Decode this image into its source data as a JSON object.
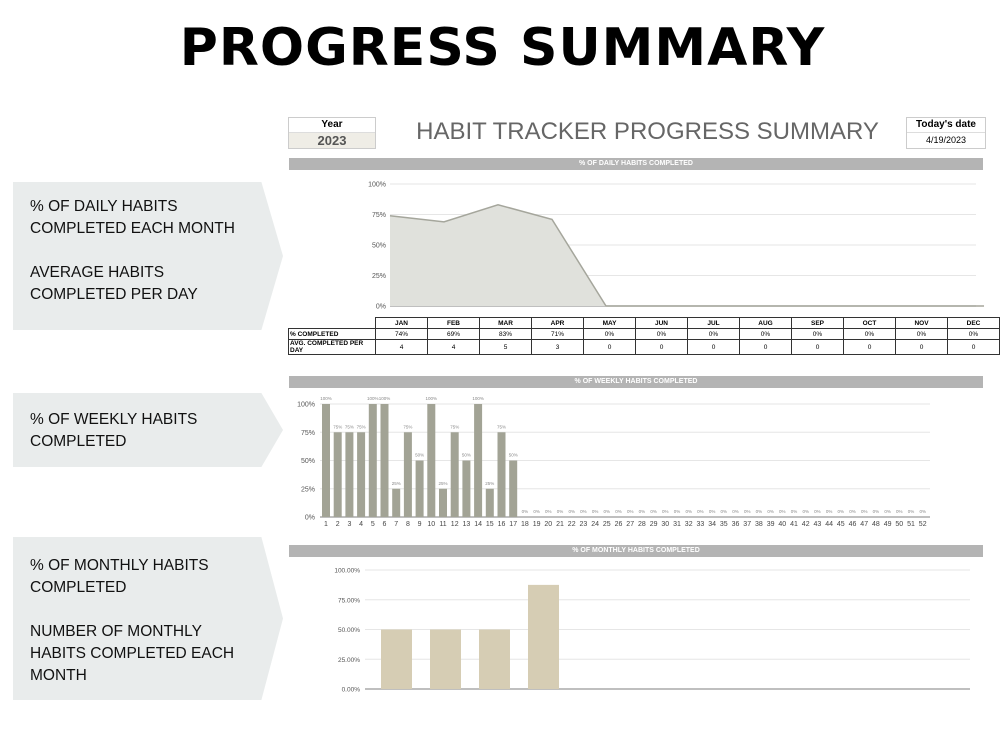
{
  "page_title": "PROGRESS SUMMARY",
  "panels": [
    {
      "text": "% OF DAILY HABITS\nCOMPLETED EACH MONTH\n\nAVERAGE HABITS\nCOMPLETED PER DAY"
    },
    {
      "text": "% OF WEEKLY HABITS\nCOMPLETED"
    },
    {
      "text": "% OF MONTHLY HABITS\nCOMPLETED\n\nNUMBER OF MONTHLY\nHABITS  COMPLETED EACH\nMONTH"
    }
  ],
  "header": {
    "year_label": "Year",
    "year_value": "2023",
    "sheet_title": "HABIT TRACKER PROGRESS SUMMARY",
    "date_label": "Today's date",
    "date_value": "4/19/2023"
  },
  "colors": {
    "area_fill": "#e0e1dc",
    "area_line": "#a5a69c",
    "weekly_bar": "#a2a395",
    "monthly_bar": "#d6cdb4",
    "section_header": "#b4b4b4",
    "panel_bg": "#e9ecec"
  },
  "table": {
    "row_labels": [
      "% COMPLETED",
      "AVG. COMPLETED PER DAY"
    ],
    "months": [
      "JAN",
      "FEB",
      "MAR",
      "APR",
      "MAY",
      "JUN",
      "JUL",
      "AUG",
      "SEP",
      "OCT",
      "NOV",
      "DEC"
    ],
    "pct": [
      "74%",
      "69%",
      "83%",
      "71%",
      "0%",
      "0%",
      "0%",
      "0%",
      "0%",
      "0%",
      "0%",
      "0%"
    ],
    "avg": [
      "4",
      "4",
      "5",
      "3",
      "0",
      "0",
      "0",
      "0",
      "0",
      "0",
      "0",
      "0"
    ]
  },
  "chart_data": [
    {
      "type": "area",
      "title": "% OF DAILY HABITS COMPLETED",
      "categories": [
        "JAN",
        "FEB",
        "MAR",
        "APR",
        "MAY",
        "JUN",
        "JUL",
        "AUG",
        "SEP",
        "OCT",
        "NOV",
        "DEC"
      ],
      "values": [
        74,
        69,
        83,
        71,
        0,
        0,
        0,
        0,
        0,
        0,
        0,
        0
      ],
      "ylim": [
        0,
        100
      ],
      "yticks": [
        "0%",
        "25%",
        "50%",
        "75%",
        "100%"
      ],
      "grid": true
    },
    {
      "type": "bar",
      "title": "% OF WEEKLY HABITS COMPLETED",
      "categories": [
        "1",
        "2",
        "3",
        "4",
        "5",
        "6",
        "7",
        "8",
        "9",
        "10",
        "11",
        "12",
        "13",
        "14",
        "15",
        "16",
        "17",
        "18",
        "19",
        "20",
        "21",
        "22",
        "23",
        "24",
        "25",
        "26",
        "27",
        "28",
        "29",
        "30",
        "31",
        "32",
        "33",
        "34",
        "35",
        "36",
        "37",
        "38",
        "39",
        "40",
        "41",
        "42",
        "43",
        "44",
        "45",
        "46",
        "47",
        "48",
        "49",
        "50",
        "51",
        "52"
      ],
      "values": [
        100,
        75,
        75,
        75,
        100,
        100,
        25,
        75,
        50,
        100,
        25,
        75,
        50,
        100,
        25,
        75,
        50,
        0,
        0,
        0,
        0,
        0,
        0,
        0,
        0,
        0,
        0,
        0,
        0,
        0,
        0,
        0,
        0,
        0,
        0,
        0,
        0,
        0,
        0,
        0,
        0,
        0,
        0,
        0,
        0,
        0,
        0,
        0,
        0,
        0,
        0,
        0
      ],
      "data_labels": true,
      "ylim": [
        0,
        100
      ],
      "yticks": [
        "0%",
        "25%",
        "50%",
        "75%",
        "100%"
      ],
      "grid": true
    },
    {
      "type": "bar",
      "title": "% OF MONTHLY HABITS COMPLETED",
      "values": [
        50,
        50,
        50,
        87.5,
        0,
        0,
        0,
        0,
        0,
        0,
        0,
        0
      ],
      "ylim": [
        0,
        100
      ],
      "yticks": [
        "0.00%",
        "25.00%",
        "50.00%",
        "75.00%",
        "100.00%"
      ],
      "grid": true
    }
  ]
}
